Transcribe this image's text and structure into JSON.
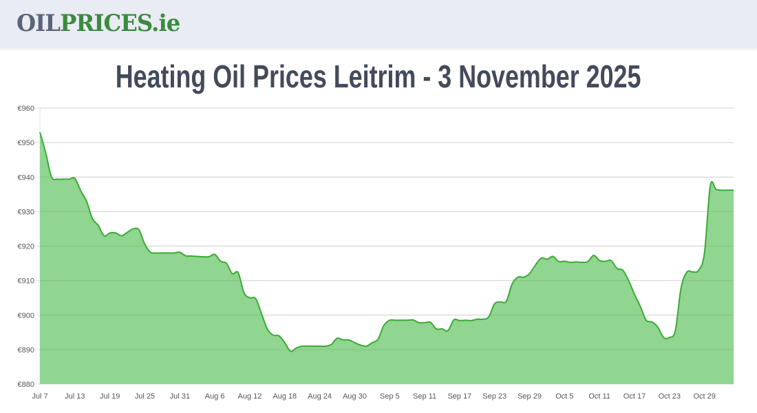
{
  "logo": {
    "part1": "OIL",
    "part2": "PRICES.ie"
  },
  "title": "Heating Oil Prices Leitrim - 3 November 2025",
  "chart_data": {
    "type": "area",
    "title": "Heating Oil Prices Leitrim - 3 November 2025",
    "xlabel": "",
    "ylabel": "",
    "x_start": "2025-07-07",
    "x_end": "2025-11-03",
    "ylim": [
      880,
      960
    ],
    "y_ticks": [
      "€880",
      "€890",
      "€900",
      "€910",
      "€920",
      "€930",
      "€940",
      "€950",
      "€960"
    ],
    "x_ticks": [
      "Jul 7",
      "Jul 13",
      "Jul 19",
      "Jul 25",
      "Jul 31",
      "Aug 6",
      "Aug 12",
      "Aug 18",
      "Aug 24",
      "Aug 30",
      "Sep 5",
      "Sep 11",
      "Sep 17",
      "Sep 23",
      "Sep 29",
      "Oct 5",
      "Oct 11",
      "Oct 17",
      "Oct 23",
      "Oct 29"
    ],
    "grid": true,
    "line_color": "#3aaa35",
    "fill_color": "#90d590",
    "daily_values": [
      953,
      947,
      940,
      939.4,
      939.4,
      939.4,
      939.6,
      936,
      933,
      928,
      926,
      923,
      923.8,
      923.8,
      923,
      924,
      925,
      924.7,
      920.5,
      918.2,
      918,
      918,
      918,
      918,
      918.2,
      917.2,
      917.1,
      917,
      916.9,
      916.9,
      917.6,
      915.6,
      915,
      912,
      912.3,
      906.5,
      905,
      904.8,
      900.5,
      896,
      894.2,
      894,
      892,
      889.5,
      890.5,
      891,
      891,
      891,
      891,
      891,
      891.5,
      893.3,
      892.8,
      892.8,
      892,
      891.3,
      891,
      892,
      893,
      897,
      898.5,
      898.5,
      898.5,
      898.5,
      898.6,
      897.8,
      897.8,
      897.9,
      896,
      896,
      895.5,
      898.6,
      898.4,
      898.5,
      898.4,
      898.8,
      898.8,
      899.5,
      903.3,
      903.8,
      904,
      909,
      911,
      911,
      912,
      914.5,
      916.5,
      916.2,
      917,
      915.5,
      915.6,
      915.3,
      915.4,
      915.3,
      915.5,
      917.3,
      915.8,
      915.6,
      915.8,
      913.5,
      913,
      910,
      906,
      902.5,
      898.5,
      898,
      896.5,
      893.5,
      893.5,
      895.5,
      908,
      912.5,
      912.5,
      913,
      918,
      937.5,
      936.4,
      936.2,
      936.2,
      936.2
    ]
  }
}
